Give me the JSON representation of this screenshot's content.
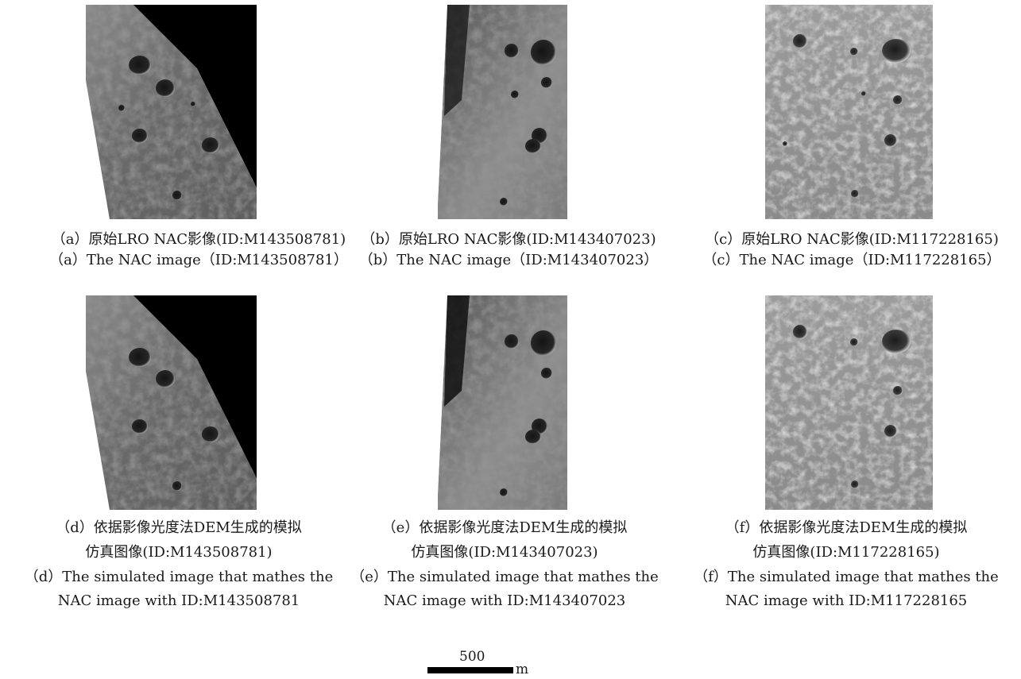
{
  "figure": {
    "scale_bar": {
      "value": "500",
      "unit": "m"
    },
    "panels": [
      {
        "id": "a",
        "caption_cn": "（a）原始LRO NAC影像(ID:M143508781)",
        "caption_en": "（a）The NAC image（ID:M143508781）",
        "image_alt": "LRO NAC lunar surface image M143508781"
      },
      {
        "id": "b",
        "caption_cn": "（b）原始LRO NAC影像(ID:M143407023)",
        "caption_en": "（b）The NAC image（ID:M143407023）",
        "image_alt": "LRO NAC lunar surface image M143407023"
      },
      {
        "id": "c",
        "caption_cn": "（c）原始LRO NAC影像(ID:M117228165)",
        "caption_en": "（c）The NAC image（ID:M117228165）",
        "image_alt": "LRO NAC lunar surface image M117228165"
      },
      {
        "id": "d",
        "caption_cn_1": "（d）依据影像光度法DEM生成的模拟",
        "caption_cn_2": "仿真图像(ID:M143508781)",
        "caption_en_1": "（d）The simulated image that mathes the",
        "caption_en_2": "NAC image with ID:M143508781",
        "image_alt": "Simulated image for M143508781"
      },
      {
        "id": "e",
        "caption_cn_1": "（e）依据影像光度法DEM生成的模拟",
        "caption_cn_2": "仿真图像(ID:M143407023)",
        "caption_en_1": "（e）The simulated image that mathes the",
        "caption_en_2": "NAC image with ID:M143407023",
        "image_alt": "Simulated image for M143407023"
      },
      {
        "id": "f",
        "caption_cn_1": "（f）依据影像光度法DEM生成的模拟",
        "caption_cn_2": "仿真图像(ID:M117228165)",
        "caption_en_1": "（f）The simulated image that mathes the",
        "caption_en_2": "NAC image with ID:M117228165",
        "image_alt": "Simulated image for M117228165"
      }
    ]
  }
}
